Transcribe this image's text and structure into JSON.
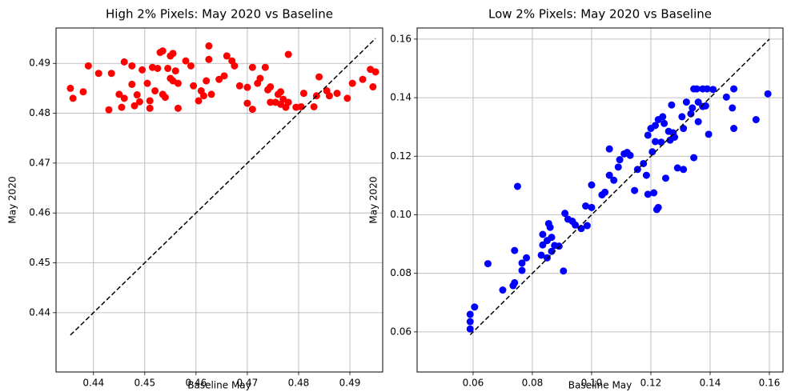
{
  "chart_data": [
    {
      "type": "scatter",
      "title": "High 2% Pixels: May 2020 vs Baseline",
      "x_label": "Baseline May",
      "y_label": "May 2020",
      "xlim": [
        0.4327,
        0.4964
      ],
      "ylim": [
        0.4281,
        0.4971
      ],
      "xticks": [
        0.44,
        0.45,
        0.46,
        0.47,
        0.48,
        0.49
      ],
      "yticks": [
        0.44,
        0.45,
        0.46,
        0.47,
        0.48,
        0.49
      ],
      "grid": true,
      "series": [
        {
          "color": "#ff0000",
          "x": [
            0.4355,
            0.436,
            0.438,
            0.439,
            0.441,
            0.443,
            0.4435,
            0.445,
            0.4455,
            0.446,
            0.446,
            0.4475,
            0.4475,
            0.448,
            0.4485,
            0.449,
            0.4495,
            0.4505,
            0.451,
            0.451,
            0.4515,
            0.452,
            0.4525,
            0.453,
            0.4535,
            0.4535,
            0.454,
            0.4545,
            0.455,
            0.455,
            0.4555,
            0.4555,
            0.456,
            0.4565,
            0.4565,
            0.458,
            0.459,
            0.4595,
            0.4605,
            0.461,
            0.4615,
            0.462,
            0.4625,
            0.4625,
            0.463,
            0.4645,
            0.4655,
            0.466,
            0.467,
            0.4675,
            0.4685,
            0.47,
            0.47,
            0.471,
            0.471,
            0.472,
            0.4725,
            0.4735,
            0.474,
            0.4745,
            0.4745,
            0.4755,
            0.476,
            0.4765,
            0.4765,
            0.477,
            0.4775,
            0.478,
            0.478,
            0.4795,
            0.4805,
            0.481,
            0.483,
            0.4835,
            0.484,
            0.4855,
            0.486,
            0.4875,
            0.4895,
            0.4905,
            0.4925,
            0.494,
            0.4945,
            0.495
          ],
          "values": [
            0.485,
            0.483,
            0.4843,
            0.4895,
            0.488,
            0.4807,
            0.488,
            0.4838,
            0.4812,
            0.4903,
            0.483,
            0.4895,
            0.4858,
            0.4815,
            0.4837,
            0.4823,
            0.4887,
            0.486,
            0.4825,
            0.481,
            0.4892,
            0.4845,
            0.489,
            0.4922,
            0.4925,
            0.4838,
            0.4832,
            0.489,
            0.4915,
            0.487,
            0.492,
            0.4865,
            0.4885,
            0.486,
            0.481,
            0.4905,
            0.4895,
            0.4855,
            0.4825,
            0.4845,
            0.4835,
            0.4865,
            0.4935,
            0.4908,
            0.4838,
            0.4868,
            0.4875,
            0.4915,
            0.4905,
            0.4895,
            0.4855,
            0.4852,
            0.482,
            0.4892,
            0.4808,
            0.486,
            0.487,
            0.4892,
            0.4847,
            0.4853,
            0.4822,
            0.4822,
            0.4838,
            0.4843,
            0.4818,
            0.4828,
            0.4812,
            0.4918,
            0.4822,
            0.4812,
            0.4813,
            0.484,
            0.4813,
            0.4835,
            0.4873,
            0.4845,
            0.4835,
            0.484,
            0.483,
            0.486,
            0.4868,
            0.4888,
            0.4853,
            0.4883
          ]
        }
      ],
      "reference_line": {
        "x": [
          0.4355,
          0.495
        ],
        "y": [
          0.4355,
          0.495
        ],
        "color": "#000000",
        "style": "dashed"
      }
    },
    {
      "type": "scatter",
      "title": "Low 2% Pixels: May 2020 vs Baseline",
      "x_label": "Baseline May",
      "y_label": "May 2020",
      "xlim": [
        0.0411,
        0.1646
      ],
      "ylim": [
        0.0463,
        0.1638
      ],
      "xticks": [
        0.06,
        0.08,
        {
          "value": 0.1,
          "label": "0.10"
        },
        0.12,
        0.14,
        0.16
      ],
      "yticks": [
        0.06,
        0.08,
        {
          "value": 0.1,
          "label": "0.10"
        },
        0.12,
        0.14,
        0.16
      ],
      "grid": true,
      "series": [
        {
          "color": "#0000ff",
          "x": [
            0.059,
            0.059,
            0.059,
            0.0605,
            0.065,
            0.07,
            0.0735,
            0.074,
            0.074,
            0.075,
            0.0765,
            0.0765,
            0.078,
            0.083,
            0.0835,
            0.0835,
            0.085,
            0.085,
            0.0855,
            0.086,
            0.0865,
            0.0865,
            0.0875,
            0.089,
            0.0905,
            0.091,
            0.092,
            0.0935,
            0.0945,
            0.0965,
            0.098,
            0.0985,
            0.1,
            0.1,
            0.1035,
            0.1045,
            0.106,
            0.106,
            0.1075,
            0.109,
            0.1095,
            0.111,
            0.112,
            0.113,
            0.1145,
            0.1155,
            0.1175,
            0.1185,
            0.119,
            0.119,
            0.12,
            0.1205,
            0.121,
            0.1215,
            0.1215,
            0.122,
            0.1225,
            0.1225,
            0.1235,
            0.124,
            0.1245,
            0.125,
            0.126,
            0.1265,
            0.127,
            0.1275,
            0.128,
            0.129,
            0.1305,
            0.131,
            0.131,
            0.132,
            0.1335,
            0.134,
            0.1345,
            0.1345,
            0.1355,
            0.136,
            0.136,
            0.1375,
            0.1375,
            0.1385,
            0.139,
            0.1395,
            0.141,
            0.1455,
            0.1475,
            0.148,
            0.148,
            0.1555,
            0.1595
          ],
          "values": [
            0.061,
            0.0635,
            0.066,
            0.0685,
            0.0833,
            0.0743,
            0.0758,
            0.0768,
            0.0878,
            0.1097,
            0.081,
            0.0835,
            0.0853,
            0.0862,
            0.0933,
            0.0897,
            0.0853,
            0.0912,
            0.097,
            0.0957,
            0.0875,
            0.0923,
            0.0895,
            0.0893,
            0.0808,
            0.1005,
            0.0985,
            0.0978,
            0.0965,
            0.0953,
            0.103,
            0.0963,
            0.1102,
            0.1025,
            0.1068,
            0.1077,
            0.1225,
            0.1135,
            0.1118,
            0.1163,
            0.1188,
            0.1208,
            0.1213,
            0.1203,
            0.1083,
            0.1155,
            0.1175,
            0.1135,
            0.1272,
            0.107,
            0.1295,
            0.1215,
            0.1075,
            0.1305,
            0.125,
            0.1018,
            0.1325,
            0.1025,
            0.1248,
            0.1335,
            0.1312,
            0.1125,
            0.1285,
            0.1255,
            0.1375,
            0.128,
            0.1265,
            0.116,
            0.1335,
            0.1295,
            0.1155,
            0.1385,
            0.1345,
            0.1365,
            0.143,
            0.1195,
            0.143,
            0.1385,
            0.1318,
            0.143,
            0.137,
            0.1372,
            0.143,
            0.1275,
            0.1428,
            0.1402,
            0.1365,
            0.143,
            0.1295,
            0.1325,
            0.1413
          ]
        }
      ],
      "reference_line": {
        "x": [
          0.059,
          0.16
        ],
        "y": [
          0.059,
          0.16
        ],
        "color": "#000000",
        "style": "dashed"
      }
    }
  ]
}
